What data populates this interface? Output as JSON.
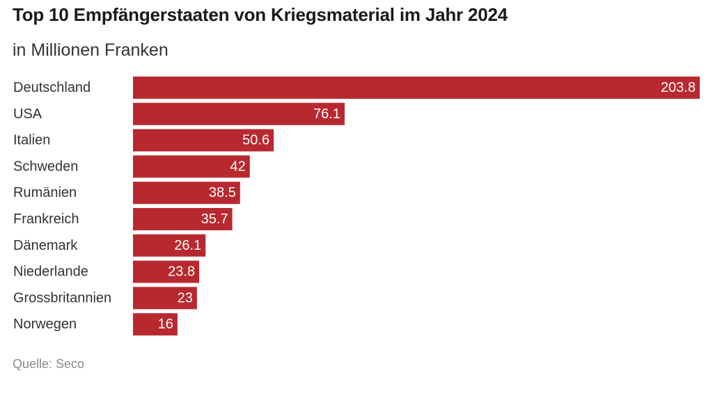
{
  "chart_data": {
    "type": "bar",
    "orientation": "horizontal",
    "title": "Top 10 Empfängerstaaten von Kriegsmaterial im Jahr 2024",
    "subtitle": "in Millionen Franken",
    "categories": [
      "Deutschland",
      "USA",
      "Italien",
      "Schweden",
      "Rumänien",
      "Frankreich",
      "Dänemark",
      "Niederlande",
      "Grossbritannien",
      "Norwegen"
    ],
    "values": [
      203.8,
      76.1,
      50.6,
      42,
      38.5,
      35.7,
      26.1,
      23.8,
      23,
      16
    ],
    "value_labels": [
      "203.8",
      "76.1",
      "50.6",
      "42",
      "38.5",
      "35.7",
      "26.1",
      "23.8",
      "23",
      "16"
    ],
    "xlim": [
      0,
      203.8
    ],
    "bar_color": "#b8292f",
    "label_color": "#ffffff",
    "grid": false,
    "legend": "none",
    "source": "Quelle: Seco"
  }
}
